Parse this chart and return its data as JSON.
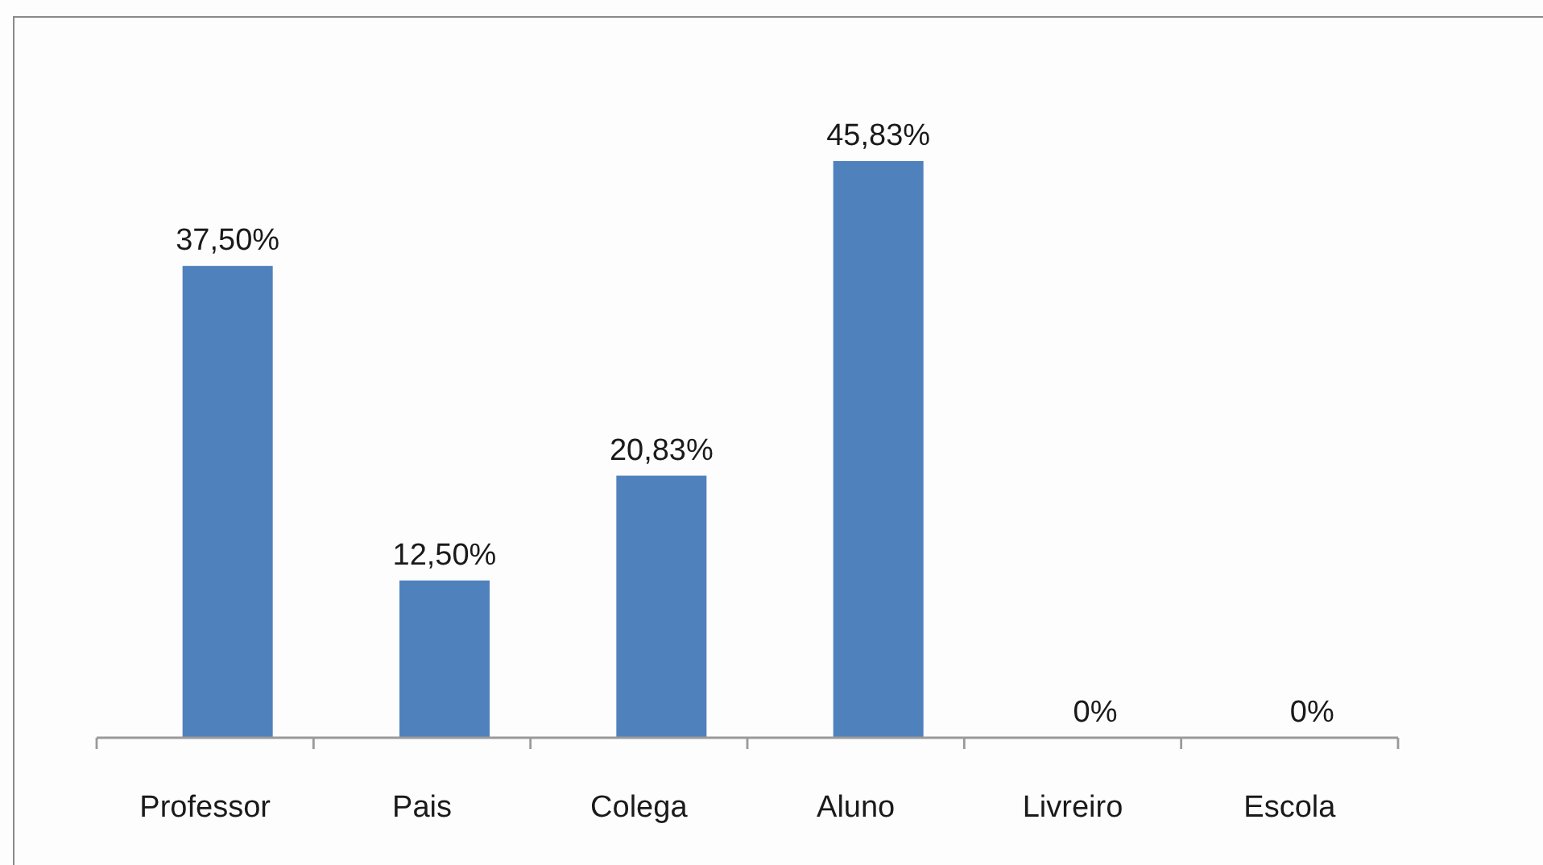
{
  "chart_data": {
    "type": "bar",
    "categories": [
      "Professor",
      "Pais",
      "Colega",
      "Aluno",
      "Livreiro",
      "Escola"
    ],
    "values": [
      37.5,
      12.5,
      20.83,
      45.83,
      0,
      0
    ],
    "value_labels": [
      "37,50%",
      "12,50%",
      "20,83%",
      "45,83%",
      "0%",
      "0%"
    ],
    "color": "#4f81bd"
  }
}
